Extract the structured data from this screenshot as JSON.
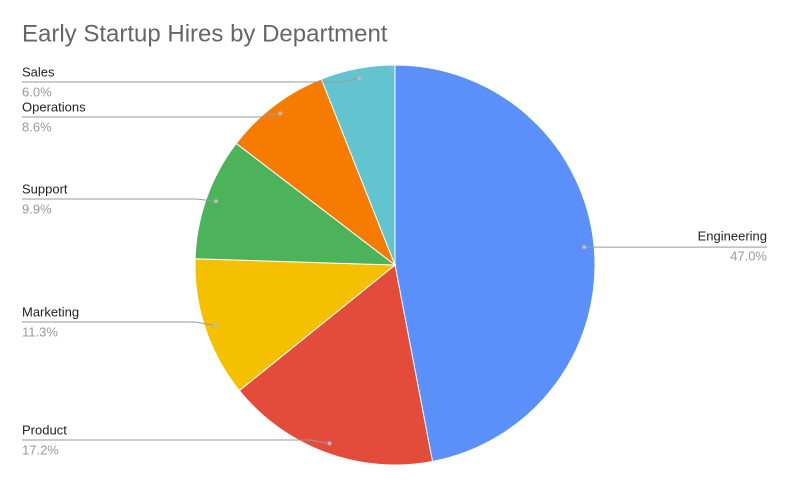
{
  "chart_data": {
    "type": "pie",
    "title": "Early Startup Hires by Department",
    "categories": [
      "Engineering",
      "Product",
      "Marketing",
      "Support",
      "Operations",
      "Sales"
    ],
    "values": [
      47.0,
      17.2,
      11.3,
      9.9,
      8.6,
      6.0
    ],
    "value_labels": [
      "47.0%",
      "17.2%",
      "11.3%",
      "9.9%",
      "8.6%",
      "6.0%"
    ],
    "colors": [
      "#5b8ff9",
      "#e34b3b",
      "#f5c000",
      "#4cb35a",
      "#f57c00",
      "#63c3cf"
    ]
  }
}
